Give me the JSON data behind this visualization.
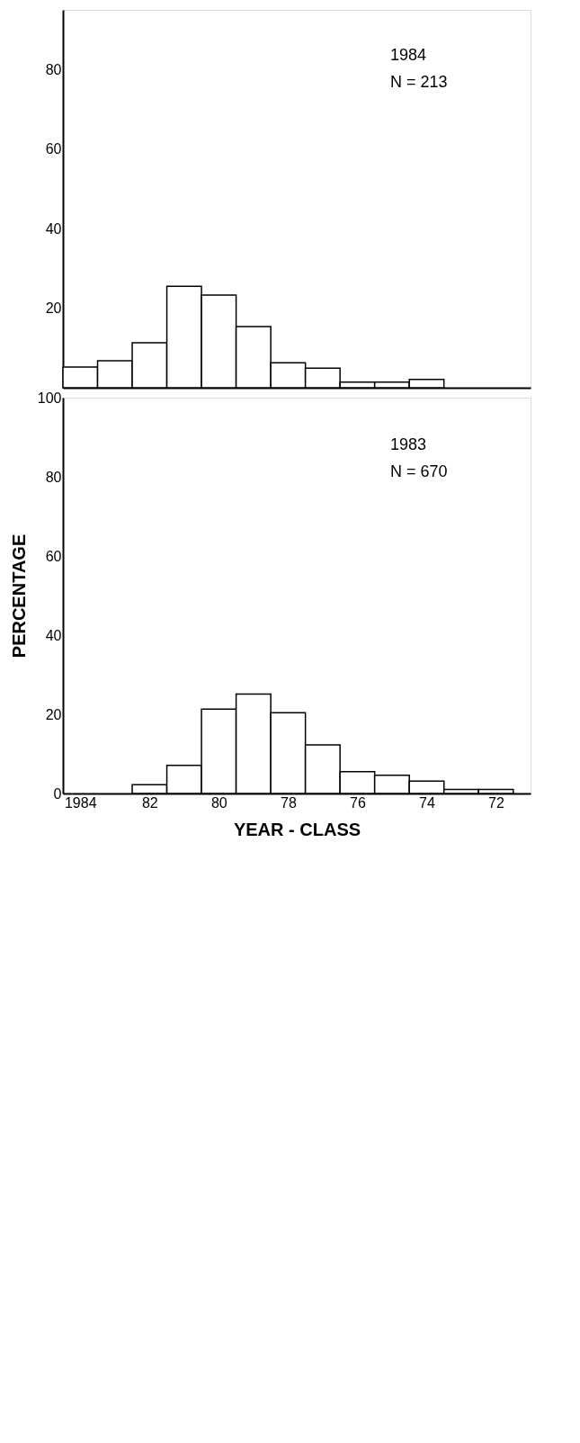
{
  "chart_data": [
    {
      "type": "histogram",
      "bins": [
        1984.5,
        1983.5,
        1982.5,
        1981.5,
        1980.5,
        1979.5,
        1978.5,
        1977.5,
        1976.5,
        1975.5,
        1974.5,
        1973.5
      ],
      "values": [
        5.2,
        6.8,
        11.3,
        25.5,
        23.3,
        15.4,
        6.3,
        4.9,
        1.4,
        1.4,
        2.1
      ],
      "color": "#ffffff",
      "xlim": [
        1984.5,
        1971
      ],
      "ylim": [
        0,
        95
      ],
      "yticks": [
        20,
        40,
        60,
        80
      ],
      "tick_labels": "y",
      "grid": false,
      "annotations": [
        "1984",
        "N = 213"
      ]
    },
    {
      "type": "histogram",
      "bins": [
        1982.5,
        1981.5,
        1980.5,
        1979.5,
        1978.5,
        1977.5,
        1976.5,
        1975.5,
        1974.5,
        1973.5,
        1972.5,
        1971.5
      ],
      "values": [
        2.2,
        7.1,
        21.3,
        25.1,
        20.4,
        12.3,
        5.5,
        4.6,
        3.1,
        1,
        1
      ],
      "color": "#ffffff",
      "xlim": [
        1984.5,
        1971
      ],
      "ylim": [
        0,
        100
      ],
      "yticks": [
        0,
        20,
        40,
        60,
        80,
        100
      ],
      "xticks": [
        {
          "value": 1984,
          "label": "1984"
        },
        {
          "value": 1982,
          "label": "82"
        },
        {
          "value": 1980,
          "label": "80"
        },
        {
          "value": 1978,
          "label": "78"
        },
        {
          "value": 1976,
          "label": "76"
        },
        {
          "value": 1974,
          "label": "74"
        },
        {
          "value": 1972,
          "label": "72"
        }
      ],
      "xlabel": "YEAR - CLASS",
      "ylabel": "PERCENTAGE",
      "grid": false,
      "annotations": [
        "1983",
        "N = 670"
      ]
    }
  ]
}
